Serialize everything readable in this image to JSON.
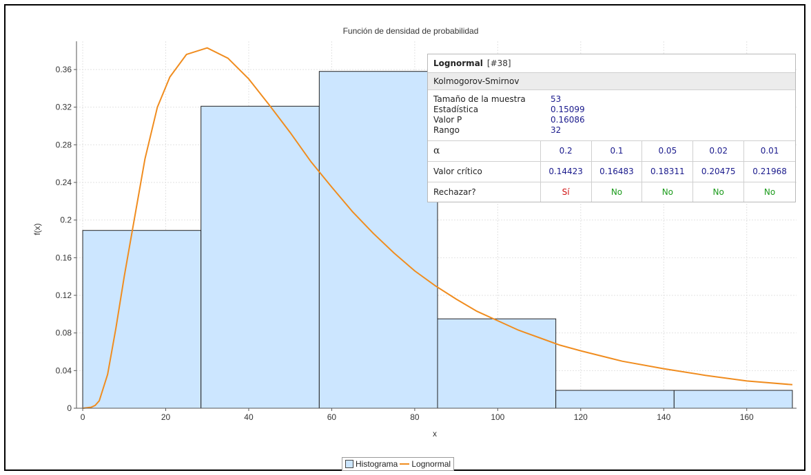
{
  "chart_data": {
    "type": "bar",
    "title": "Función de densidad de probabilidad",
    "xlabel": "x",
    "ylabel": "f(x)",
    "xlim": [
      -1.5,
      172
    ],
    "ylim": [
      0,
      0.39
    ],
    "xticks": [
      0,
      20,
      40,
      60,
      80,
      100,
      120,
      140,
      160
    ],
    "yticks": [
      "0",
      "0.04",
      "0.08",
      "0.12",
      "0.16",
      "0.2",
      "0.24",
      "0.28",
      "0.32",
      "0.36"
    ],
    "ytick_values": [
      0,
      0.04,
      0.08,
      0.12,
      0.16,
      0.2,
      0.24,
      0.28,
      0.32,
      0.36
    ],
    "grid": true,
    "legend_position": "bottom-center",
    "series": [
      {
        "name": "Histograma",
        "type": "histogram",
        "color": "#cce6ff",
        "bins": [
          {
            "x0": 0,
            "x1": 28.5,
            "value": 0.189
          },
          {
            "x0": 28.5,
            "x1": 57,
            "value": 0.321
          },
          {
            "x0": 57,
            "x1": 85.5,
            "value": 0.358
          },
          {
            "x0": 85.5,
            "x1": 114,
            "value": 0.095
          },
          {
            "x0": 114,
            "x1": 142.5,
            "value": 0.019
          },
          {
            "x0": 142.5,
            "x1": 171,
            "value": 0.019
          }
        ]
      },
      {
        "name": "Lognormal",
        "type": "line",
        "color": "#f08c1e",
        "x": [
          0,
          2,
          3,
          4,
          6,
          8,
          10,
          12,
          15,
          18,
          21,
          25,
          30,
          35,
          40,
          45,
          50,
          55,
          60,
          65,
          70,
          75,
          80,
          85,
          90,
          95,
          100,
          105,
          110,
          115,
          120,
          130,
          140,
          150,
          160,
          171
        ],
        "y": [
          0.0,
          0.001,
          0.003,
          0.008,
          0.036,
          0.085,
          0.14,
          0.19,
          0.265,
          0.32,
          0.352,
          0.376,
          0.383,
          0.372,
          0.35,
          0.322,
          0.293,
          0.262,
          0.235,
          0.209,
          0.186,
          0.165,
          0.146,
          0.13,
          0.116,
          0.103,
          0.093,
          0.083,
          0.075,
          0.067,
          0.061,
          0.05,
          0.042,
          0.035,
          0.029,
          0.025
        ]
      }
    ]
  },
  "ks_panel": {
    "distribution": "Lognormal",
    "id": "[#38]",
    "test_name": "Kolmogorov-Smirnov",
    "info_labels": [
      "Tamaño de la muestra",
      "Estadística",
      "Valor P",
      "Rango"
    ],
    "info_values": [
      "53",
      "0.15099",
      "0.16086",
      "32"
    ],
    "alpha_label": "α",
    "alpha_values": [
      "0.2",
      "0.1",
      "0.05",
      "0.02",
      "0.01"
    ],
    "critical_label": "Valor crítico",
    "critical_values": [
      "0.14423",
      "0.16483",
      "0.18311",
      "0.20475",
      "0.21968"
    ],
    "reject_label": "Rechazar?",
    "reject_values": [
      "Sí",
      "No",
      "No",
      "No",
      "No"
    ],
    "colors": {
      "reject_yes": "#d01010",
      "reject_no": "#1a9a1a",
      "value_text": "#1a1a8c"
    }
  },
  "legend": {
    "items": [
      {
        "label": "Histograma",
        "kind": "box",
        "color": "#cce6ff"
      },
      {
        "label": "Lognormal",
        "kind": "line",
        "color": "#f08c1e"
      }
    ]
  }
}
